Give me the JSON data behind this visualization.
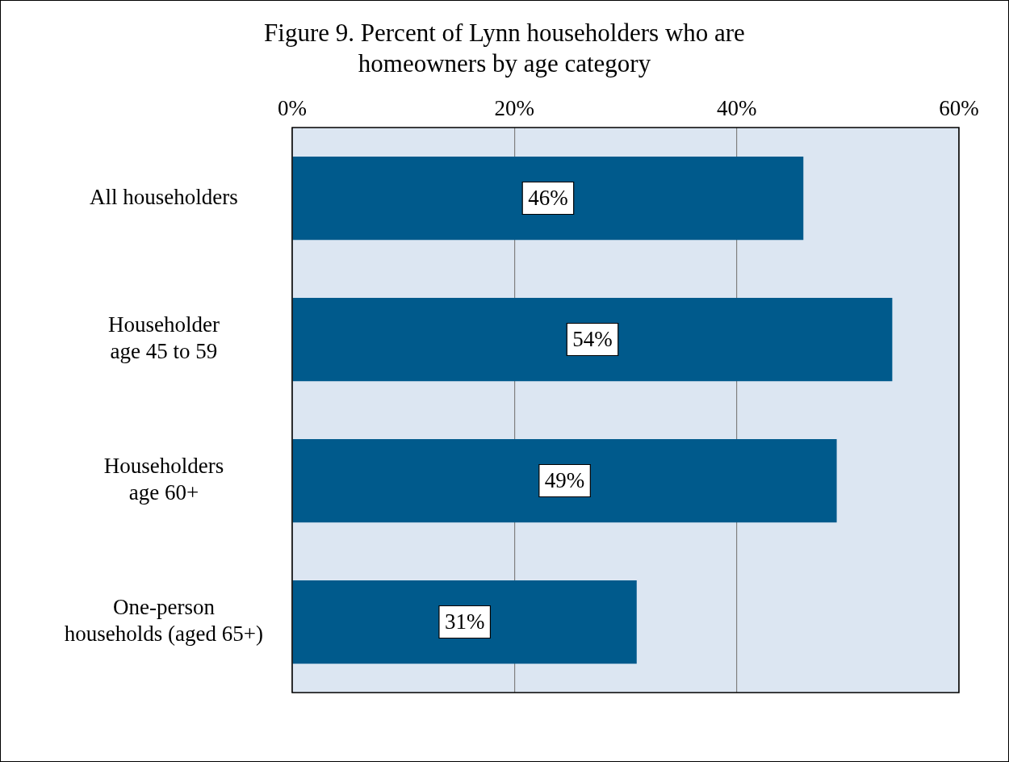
{
  "chart_data": {
    "type": "bar",
    "orientation": "horizontal",
    "title": "Figure 9. Percent of Lynn householders who are homeowners by age category",
    "categories": [
      "All householders",
      "Householder\nage 45 to 59",
      "Householders\nage 60+",
      "One-person\nhouseholds (aged 65+)"
    ],
    "values": [
      46,
      54,
      49,
      31
    ],
    "color": "#005a8c",
    "value_labels": [
      "46%",
      "54%",
      "49%",
      "31%"
    ],
    "xlim": [
      0,
      60
    ],
    "xticks": [
      {
        "value": 0,
        "label": "0%"
      },
      {
        "value": 20,
        "label": "20%"
      },
      {
        "value": 40,
        "label": "40%"
      },
      {
        "value": 60,
        "label": "60%"
      }
    ],
    "grid": "x",
    "legend": false
  }
}
